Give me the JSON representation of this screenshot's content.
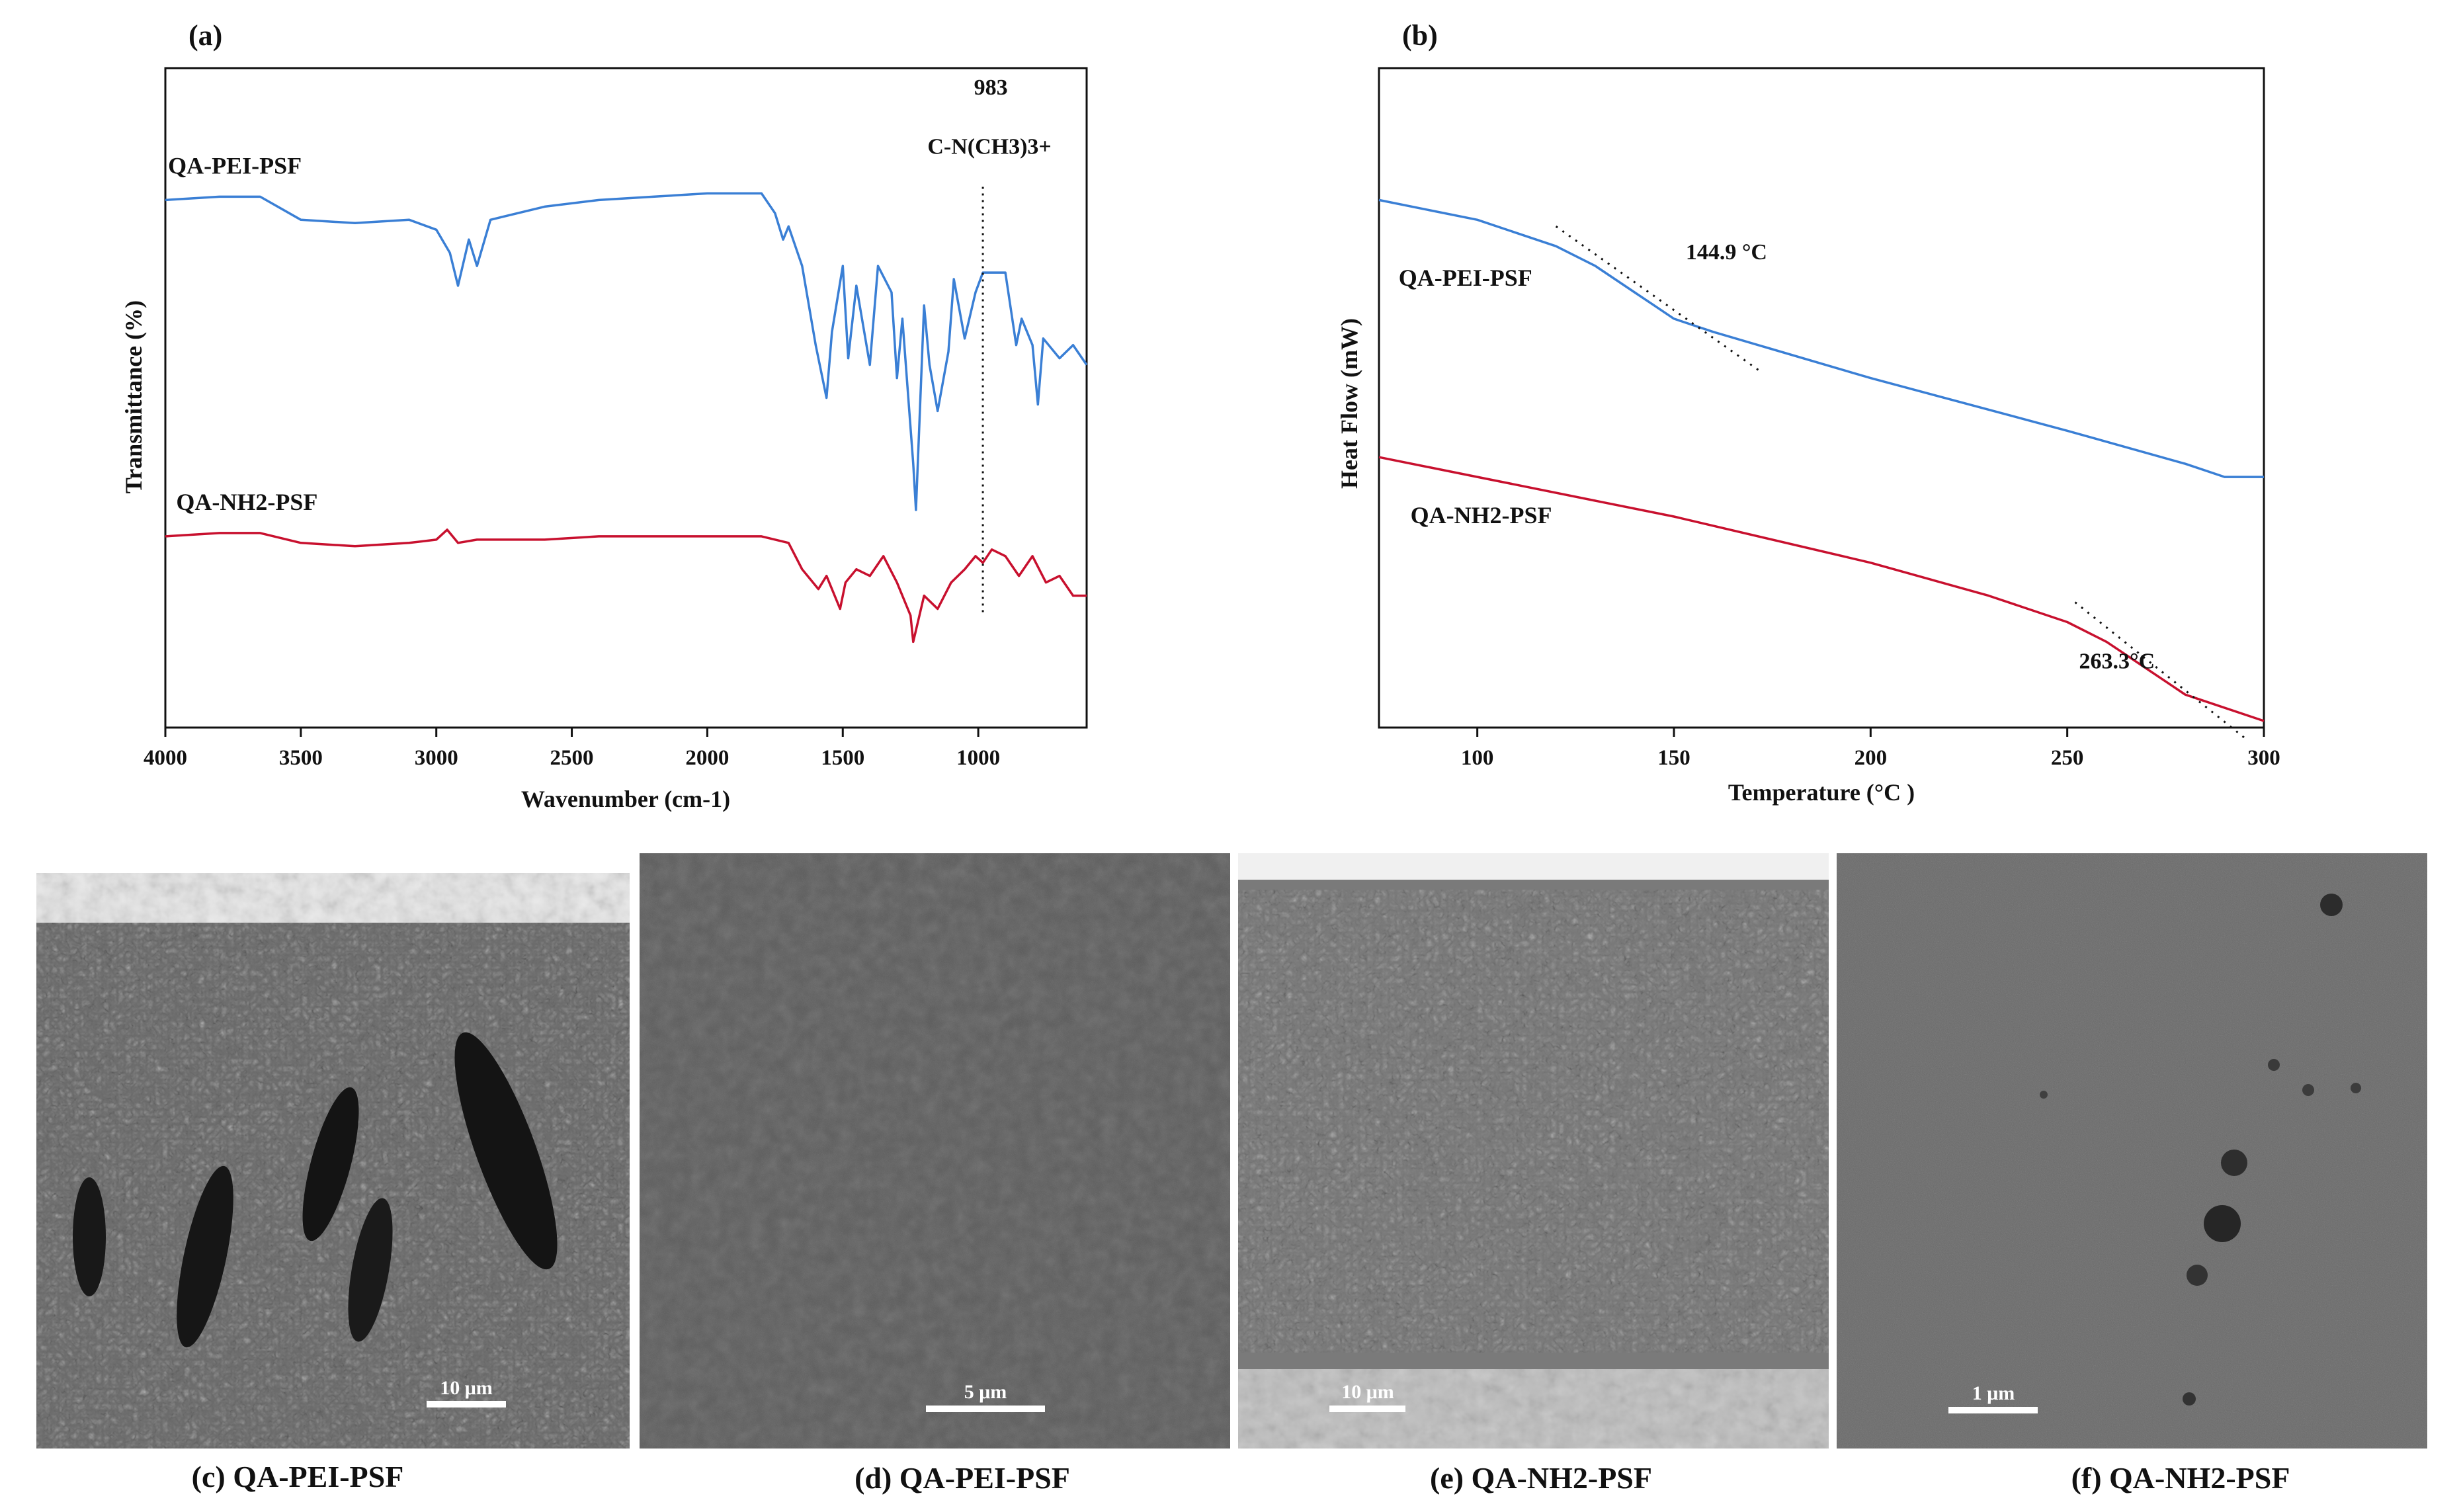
{
  "chart_data": [
    {
      "panel": "(a)",
      "type": "line",
      "title": "",
      "xlabel": "Wavenumber (cm-1)",
      "ylabel": "Transmittance (%)",
      "xlim": [
        4000,
        600
      ],
      "x_reversed": true,
      "xticks": [
        4000,
        3500,
        3000,
        2500,
        2000,
        1500,
        1000
      ],
      "ylim": [
        0,
        100
      ],
      "y_units": "arbitrary (stacked, offset)",
      "annotations": [
        {
          "text": "983",
          "x": 983
        },
        {
          "text": "C-N(CH3)3+",
          "x": 983
        }
      ],
      "series": [
        {
          "name": "QA-PEI-PSF",
          "color": "#3a7fd5",
          "points": [
            [
              4000,
              80
            ],
            [
              3800,
              80.5
            ],
            [
              3650,
              80.5
            ],
            [
              3500,
              77
            ],
            [
              3300,
              76.5
            ],
            [
              3100,
              77
            ],
            [
              3000,
              75.5
            ],
            [
              2950,
              72
            ],
            [
              2920,
              67
            ],
            [
              2880,
              74
            ],
            [
              2850,
              70
            ],
            [
              2800,
              77
            ],
            [
              2600,
              79
            ],
            [
              2400,
              80
            ],
            [
              2200,
              80.5
            ],
            [
              2000,
              81
            ],
            [
              1800,
              81
            ],
            [
              1750,
              78
            ],
            [
              1720,
              74
            ],
            [
              1700,
              76
            ],
            [
              1650,
              70
            ],
            [
              1600,
              58
            ],
            [
              1580,
              54
            ],
            [
              1560,
              50
            ],
            [
              1540,
              60
            ],
            [
              1500,
              70
            ],
            [
              1480,
              56
            ],
            [
              1450,
              67
            ],
            [
              1400,
              55
            ],
            [
              1370,
              70
            ],
            [
              1320,
              66
            ],
            [
              1300,
              53
            ],
            [
              1280,
              62
            ],
            [
              1240,
              40
            ],
            [
              1230,
              33
            ],
            [
              1200,
              64
            ],
            [
              1180,
              55
            ],
            [
              1150,
              48
            ],
            [
              1110,
              57
            ],
            [
              1090,
              68
            ],
            [
              1050,
              59
            ],
            [
              1010,
              66
            ],
            [
              983,
              69
            ],
            [
              950,
              69
            ],
            [
              900,
              69
            ],
            [
              860,
              58
            ],
            [
              840,
              62
            ],
            [
              800,
              58
            ],
            [
              780,
              49
            ],
            [
              760,
              59
            ],
            [
              700,
              56
            ],
            [
              650,
              58
            ],
            [
              600,
              55
            ]
          ]
        },
        {
          "name": "QA-NH2-PSF",
          "color": "#c8102e",
          "points": [
            [
              4000,
              29
            ],
            [
              3800,
              29.5
            ],
            [
              3650,
              29.5
            ],
            [
              3500,
              28
            ],
            [
              3300,
              27.5
            ],
            [
              3100,
              28
            ],
            [
              3000,
              28.5
            ],
            [
              2960,
              30
            ],
            [
              2920,
              28
            ],
            [
              2850,
              28.5
            ],
            [
              2600,
              28.5
            ],
            [
              2400,
              29
            ],
            [
              2200,
              29
            ],
            [
              2000,
              29
            ],
            [
              1800,
              29
            ],
            [
              1700,
              28
            ],
            [
              1650,
              24
            ],
            [
              1590,
              21
            ],
            [
              1560,
              23
            ],
            [
              1510,
              18
            ],
            [
              1490,
              22
            ],
            [
              1450,
              24
            ],
            [
              1400,
              23
            ],
            [
              1350,
              26
            ],
            [
              1300,
              22
            ],
            [
              1250,
              17
            ],
            [
              1240,
              13
            ],
            [
              1200,
              20
            ],
            [
              1150,
              18
            ],
            [
              1100,
              22
            ],
            [
              1050,
              24
            ],
            [
              1010,
              26
            ],
            [
              983,
              25
            ],
            [
              950,
              27
            ],
            [
              900,
              26
            ],
            [
              850,
              23
            ],
            [
              800,
              26
            ],
            [
              750,
              22
            ],
            [
              700,
              23
            ],
            [
              650,
              20
            ],
            [
              600,
              20
            ]
          ]
        }
      ]
    },
    {
      "panel": "(b)",
      "type": "line",
      "title": "",
      "xlabel": "Temperature (°C )",
      "ylabel": "Heat Flow (mW)",
      "xlim": [
        75,
        300
      ],
      "xticks": [
        100,
        150,
        200,
        250,
        300
      ],
      "ylim": [
        0,
        100
      ],
      "y_units": "arbitrary",
      "annotations": [
        {
          "text": "144.9 °C",
          "x": 144.9
        },
        {
          "text": "263.3°C",
          "x": 263.3
        }
      ],
      "series": [
        {
          "name": "QA-PEI-PSF",
          "color": "#3a7fd5",
          "points": [
            [
              75,
              80
            ],
            [
              100,
              77
            ],
            [
              120,
              73
            ],
            [
              130,
              70
            ],
            [
              140,
              66
            ],
            [
              145,
              64
            ],
            [
              150,
              62
            ],
            [
              160,
              60
            ],
            [
              200,
              53
            ],
            [
              250,
              45
            ],
            [
              280,
              40
            ],
            [
              290,
              38
            ],
            [
              300,
              38
            ]
          ]
        },
        {
          "name": "QA-NH2-PSF",
          "color": "#c8102e",
          "points": [
            [
              75,
              41
            ],
            [
              100,
              38
            ],
            [
              150,
              32
            ],
            [
              200,
              25
            ],
            [
              230,
              20
            ],
            [
              250,
              16
            ],
            [
              260,
              13
            ],
            [
              265,
              11
            ],
            [
              270,
              9
            ],
            [
              275,
              7
            ],
            [
              280,
              5
            ],
            [
              300,
              1
            ]
          ]
        }
      ]
    }
  ],
  "panels": {
    "a": {
      "label": "(a)",
      "annotation_value": "983",
      "annotation_group": "C-N(CH3)3+"
    },
    "b": {
      "label": "(b)",
      "tg1": "144.9 °C",
      "tg2": "263.3°C"
    }
  },
  "sem_images": [
    {
      "caption": "(c) QA-PEI-PSF",
      "scale": "10 μm"
    },
    {
      "caption": "(d) QA-PEI-PSF",
      "scale": "5 μm"
    },
    {
      "caption": "(e) QA-NH2-PSF",
      "scale": "10 μm"
    },
    {
      "caption": "(f) QA-NH2-PSF",
      "scale": "1 μm"
    }
  ]
}
